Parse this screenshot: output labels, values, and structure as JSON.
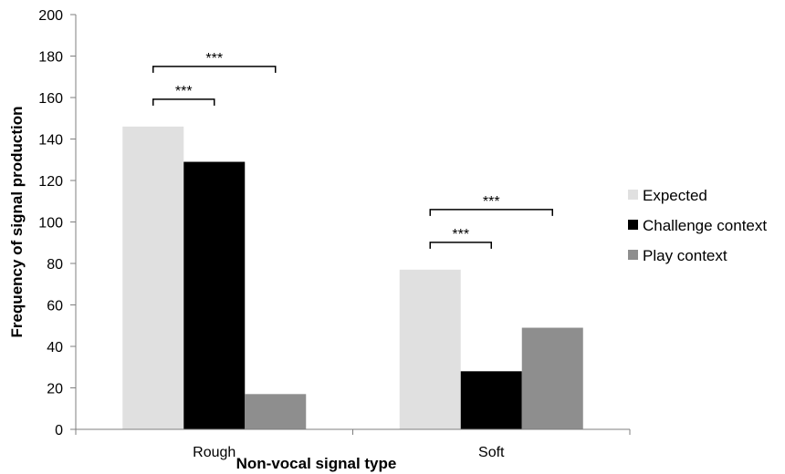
{
  "chart_data": {
    "type": "bar",
    "title": "",
    "xlabel": "Non-vocal signal type",
    "ylabel": "Frequency of signal production",
    "categories": [
      "Rough",
      "Soft"
    ],
    "series": [
      {
        "name": "Expected",
        "values": [
          146,
          77
        ],
        "color": "#e0e0e0"
      },
      {
        "name": "Challenge context",
        "values": [
          129,
          28
        ],
        "color": "#000000"
      },
      {
        "name": "Play context",
        "values": [
          17,
          49
        ],
        "color": "#8e8e8e"
      }
    ],
    "ylim": [
      0,
      200
    ],
    "yticks": [
      0,
      20,
      40,
      60,
      80,
      100,
      120,
      140,
      160,
      180,
      200
    ],
    "grid": false,
    "legend_position": "right",
    "annotations": [
      {
        "category": "Rough",
        "from_series": "Expected",
        "to_series": "Challenge context",
        "label": "***"
      },
      {
        "category": "Rough",
        "from_series": "Expected",
        "to_series": "Play context",
        "label": "***"
      },
      {
        "category": "Soft",
        "from_series": "Expected",
        "to_series": "Challenge context",
        "label": "***"
      },
      {
        "category": "Soft",
        "from_series": "Expected",
        "to_series": "Play context",
        "label": "***"
      }
    ]
  }
}
